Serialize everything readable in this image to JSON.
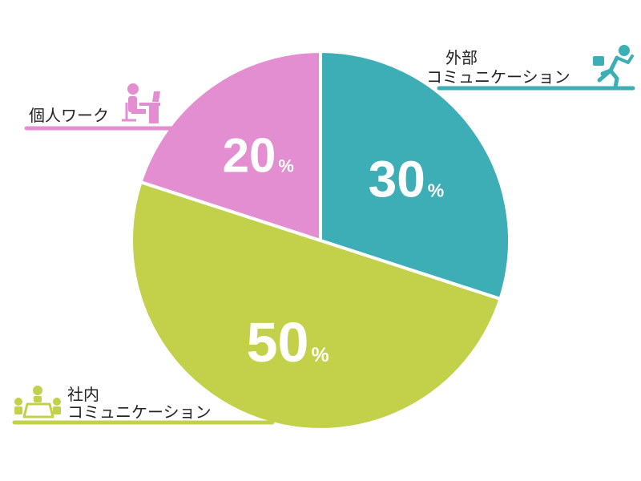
{
  "chart_data": {
    "type": "pie",
    "title": "",
    "start_angle_deg": 0,
    "direction": "clockwise",
    "slices": [
      {
        "label_lines": [
          "外部",
          "コミュニケーション"
        ],
        "value": 30,
        "value_text": "30",
        "unit": "%",
        "color": "#3daeb5",
        "icon": "running-person-icon"
      },
      {
        "label_lines": [
          "社内",
          "コミュニケーション"
        ],
        "value": 50,
        "value_text": "50",
        "unit": "%",
        "color": "#c2d04a",
        "icon": "meeting-table-icon"
      },
      {
        "label_lines": [
          "個人ワーク"
        ],
        "value": 20,
        "value_text": "20",
        "unit": "%",
        "color": "#e28ed0",
        "icon": "desk-worker-icon"
      }
    ]
  }
}
